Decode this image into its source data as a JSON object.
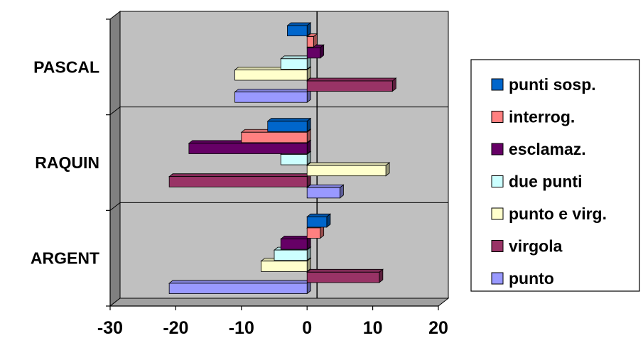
{
  "chart_data": {
    "type": "bar",
    "orientation": "horizontal",
    "style": "3d",
    "categories": [
      "ARGENT",
      "RAQUIN",
      "PASCAL"
    ],
    "series": [
      {
        "name": "punto",
        "color": "#9999ff",
        "values": [
          -21,
          5,
          -11
        ]
      },
      {
        "name": "virgola",
        "color": "#993366",
        "values": [
          11,
          -21,
          13
        ]
      },
      {
        "name": "punto e virg.",
        "color": "#ffffcc",
        "values": [
          -7,
          12,
          -11
        ]
      },
      {
        "name": "due punti",
        "color": "#ccffff",
        "values": [
          -5,
          -4,
          -4
        ]
      },
      {
        "name": "esclamaz.",
        "color": "#660066",
        "values": [
          -4,
          -18,
          2
        ]
      },
      {
        "name": "interrog.",
        "color": "#ff8080",
        "values": [
          2,
          -10,
          1
        ]
      },
      {
        "name": "punti sosp.",
        "color": "#0066cc",
        "values": [
          3,
          -6,
          -3
        ]
      }
    ],
    "legend_order": [
      "punti sosp.",
      "interrog.",
      "esclamaz.",
      "due punti",
      "punto e virg.",
      "virgola",
      "punto"
    ],
    "xlim": [
      -30,
      20
    ],
    "xticks": [
      -30,
      -20,
      -10,
      0,
      10,
      20
    ],
    "grid": true,
    "legend_position": "right",
    "wall_color": "#c0c0c0"
  }
}
